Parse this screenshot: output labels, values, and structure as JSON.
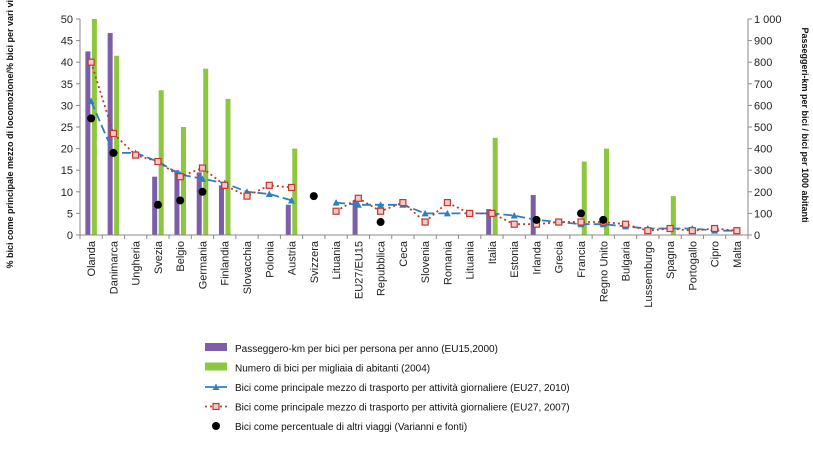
{
  "chart_data": {
    "type": "bar",
    "categories": [
      "Olanda",
      "Danimarca",
      "Ungheria",
      "Svezia",
      "Belgio",
      "Germania",
      "Finlandia",
      "Slovacchia",
      "Polonia",
      "Austria",
      "Svizzera",
      "Lituania",
      "EU27/EU15",
      "Repubblica",
      "Ceca",
      "Slovenia",
      "Romania",
      "Lituania",
      "Italia",
      "Estonia",
      "Irlanda",
      "Grecia",
      "Francia",
      "Regno Unito",
      "Bulgaria",
      "Lussemburgo",
      "Spagna",
      "Portogallo",
      "Cipro",
      "Malta"
    ],
    "ylabel": "% bici come principale mezzo di locomozione/% bici per vari viaggi",
    "y2label": "Passeggeri-km per bici / bici per 1000 abitanti",
    "ylim": [
      0,
      50
    ],
    "y2lim": [
      0,
      1000
    ],
    "yticks": [
      "0",
      "5",
      "10",
      "15",
      "20",
      "25",
      "30",
      "35",
      "40",
      "45",
      "50"
    ],
    "y2ticks": [
      "0",
      "100",
      "200",
      "300",
      "400",
      "500",
      "600",
      "700",
      "800",
      "900",
      "1 000"
    ],
    "grid": false,
    "legend_position": "bottom",
    "series": [
      {
        "name": "Passeggero-km per bici per persona per anno (EU15,2000)",
        "type": "bar",
        "axis": "right",
        "color": "#7b5ea7",
        "values": [
          850,
          935,
          null,
          270,
          300,
          290,
          230,
          null,
          null,
          140,
          null,
          null,
          160,
          null,
          null,
          null,
          null,
          null,
          120,
          null,
          185,
          null,
          null,
          null,
          null,
          null,
          null,
          null,
          null,
          null
        ]
      },
      {
        "name": "Numero di bici per migliaia di abitanti (2004)",
        "type": "bar",
        "axis": "right",
        "color": "#8dc63f",
        "values": [
          1000,
          830,
          null,
          670,
          500,
          770,
          630,
          null,
          null,
          400,
          null,
          null,
          null,
          null,
          null,
          null,
          null,
          null,
          450,
          null,
          null,
          null,
          340,
          400,
          null,
          null,
          180,
          null,
          null,
          null
        ]
      },
      {
        "name": "Bici come principale mezzo di trasporto per attività giornaliere (EU27, 2010)",
        "type": "line",
        "axis": "left",
        "color": "#2f7fbf",
        "dash": "9 4",
        "marker": "tri",
        "values": [
          31,
          19,
          19,
          17,
          14,
          13,
          12,
          10,
          9.5,
          8,
          null,
          7.5,
          7,
          7,
          7,
          5,
          5,
          5,
          5,
          4.5,
          3.5,
          3,
          2.5,
          2.5,
          2,
          1.5,
          1.5,
          1.5,
          1,
          1
        ]
      },
      {
        "name": "Bici come principale mezzo di trasporto per attività giornaliere (EU27, 2007)",
        "type": "line",
        "axis": "left",
        "color": "#c0392b",
        "dash": "2 3",
        "marker": "square",
        "values": [
          40,
          23.5,
          18.5,
          17,
          13.5,
          15.5,
          11.5,
          9,
          11.5,
          11,
          null,
          5.5,
          8.5,
          5.5,
          7.5,
          3,
          7.5,
          5,
          5,
          2.5,
          2.5,
          3,
          3,
          3,
          2.5,
          1,
          1.5,
          1,
          1.5,
          1
        ]
      },
      {
        "name": "Bici come percentuale di altri viaggi (Varianni e fonti)",
        "type": "scatter",
        "axis": "left",
        "color": "#000000",
        "values": [
          27,
          19,
          null,
          7,
          8,
          10,
          null,
          null,
          null,
          null,
          9,
          null,
          null,
          3,
          null,
          null,
          null,
          null,
          null,
          null,
          3.5,
          null,
          5,
          3.5,
          null,
          null,
          null,
          null,
          null,
          null
        ]
      }
    ]
  }
}
